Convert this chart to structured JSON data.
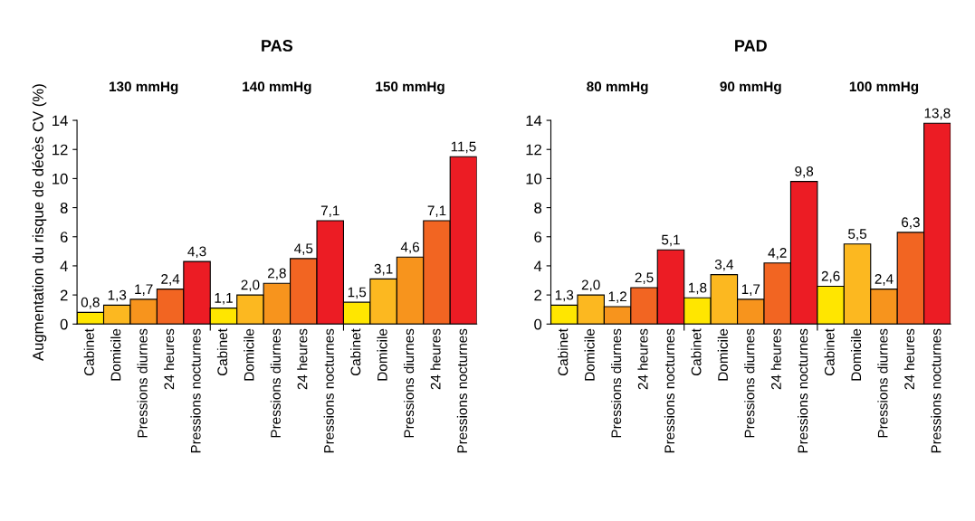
{
  "chart_data": [
    {
      "type": "bar",
      "title": "PAS",
      "ylabel": "Augmentation du risque de décès CV (%)",
      "categories": [
        "Cabinet",
        "Domicile",
        "Pressions diurnes",
        "24 heures",
        "Pressions nocturnes",
        "Cabinet",
        "Domicile",
        "Pressions diurnes",
        "24 heures",
        "Pressions nocturnes",
        "Cabinet",
        "Domicile",
        "Pressions diurnes",
        "24 heures",
        "Pressions nocturnes"
      ],
      "values": [
        0.8,
        1.3,
        1.7,
        2.4,
        4.3,
        1.1,
        2.0,
        2.8,
        4.5,
        7.1,
        1.5,
        3.1,
        4.6,
        7.1,
        11.5
      ],
      "value_labels": [
        "0,8",
        "1,3",
        "1,7",
        "2,4",
        "4,3",
        "1,1",
        "2,0",
        "2,8",
        "4,5",
        "7,1",
        "1,5",
        "3,1",
        "4,6",
        "7,1",
        "11,5"
      ],
      "colors": [
        "#ffe600",
        "#fcb820",
        "#f7941d",
        "#f26522",
        "#ec1c24",
        "#ffe600",
        "#fcb820",
        "#f7941d",
        "#f26522",
        "#ec1c24",
        "#ffe600",
        "#fcb820",
        "#f7941d",
        "#f26522",
        "#ec1c24"
      ],
      "annotations": [
        "130 mmHg",
        "140 mmHg",
        "150 mmHg"
      ],
      "ylim": [
        0,
        14
      ],
      "yticks": [
        0,
        2,
        4,
        6,
        8,
        10,
        12,
        14
      ],
      "grid": false,
      "legend": false
    },
    {
      "type": "bar",
      "title": "PAD",
      "categories": [
        "Cabinet",
        "Domicile",
        "Pressions diurnes",
        "24 heures",
        "Pressions nocturnes",
        "Cabinet",
        "Domicile",
        "Pressions diurnes",
        "24 heures",
        "Pressions nocturnes",
        "Cabinet",
        "Domicile",
        "Pressions diurnes",
        "24 heures",
        "Pressions nocturnes"
      ],
      "values": [
        1.3,
        2.0,
        1.2,
        2.5,
        5.1,
        1.8,
        3.4,
        1.7,
        4.2,
        9.8,
        2.6,
        5.5,
        2.4,
        6.3,
        13.8
      ],
      "value_labels": [
        "1,3",
        "2,0",
        "1,2",
        "2,5",
        "5,1",
        "1,8",
        "3,4",
        "1,7",
        "4,2",
        "9,8",
        "2,6",
        "5,5",
        "2,4",
        "6,3",
        "13,8"
      ],
      "colors": [
        "#ffe600",
        "#fcb820",
        "#f7941d",
        "#f26522",
        "#ec1c24",
        "#ffe600",
        "#fcb820",
        "#f7941d",
        "#f26522",
        "#ec1c24",
        "#ffe600",
        "#fcb820",
        "#f7941d",
        "#f26522",
        "#ec1c24"
      ],
      "annotations": [
        "80 mmHg",
        "90 mmHg",
        "100 mmHg"
      ],
      "ylim": [
        0,
        14
      ],
      "yticks": [
        0,
        2,
        4,
        6,
        8,
        10,
        12,
        14
      ],
      "grid": false,
      "legend": false
    }
  ]
}
